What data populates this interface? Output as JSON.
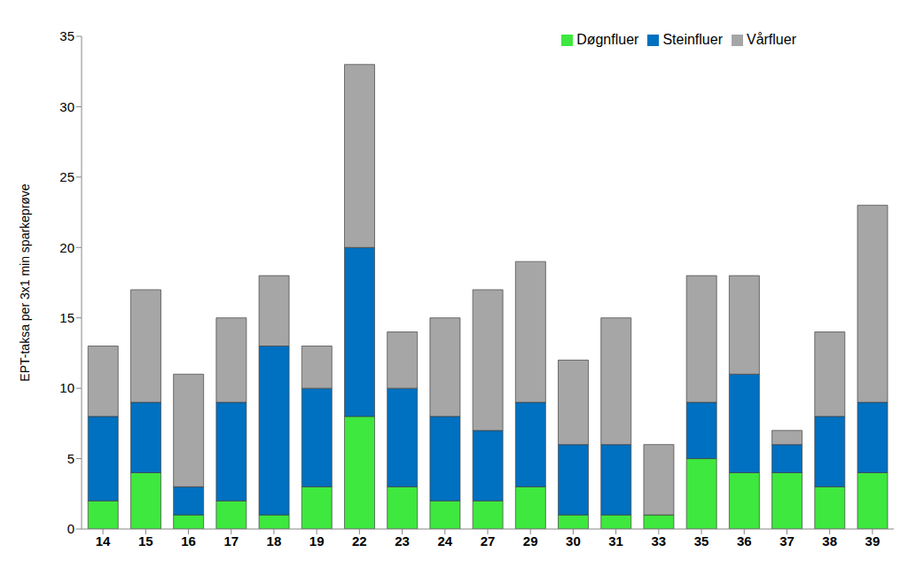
{
  "chart_data": {
    "type": "bar",
    "stacked": true,
    "y_label": "EPT-taksa per 3x1 min sparkeprøve",
    "categories": [
      "14",
      "15",
      "16",
      "17",
      "18",
      "19",
      "22",
      "23",
      "24",
      "27",
      "29",
      "30",
      "31",
      "33",
      "35",
      "36",
      "37",
      "38",
      "39"
    ],
    "series": [
      {
        "name": "Døgnfluer",
        "color": "#3ee83e",
        "values": [
          2,
          4,
          1,
          2,
          1,
          3,
          8,
          3,
          2,
          2,
          3,
          1,
          1,
          1,
          5,
          4,
          4,
          3,
          4
        ]
      },
      {
        "name": "Steinfluer",
        "color": "#0070c0",
        "values": [
          6,
          5,
          2,
          7,
          12,
          7,
          12,
          7,
          6,
          5,
          6,
          5,
          5,
          0,
          4,
          7,
          2,
          5,
          5
        ]
      },
      {
        "name": "Vårfluer",
        "color": "#a6a6a6",
        "values": [
          5,
          8,
          8,
          6,
          5,
          3,
          13,
          4,
          7,
          10,
          10,
          6,
          9,
          5,
          9,
          7,
          1,
          6,
          14
        ]
      }
    ],
    "ylim": [
      0,
      35
    ],
    "yticks": [
      0,
      5,
      10,
      15,
      20,
      25,
      30,
      35
    ],
    "grid": false,
    "legend": "top"
  }
}
